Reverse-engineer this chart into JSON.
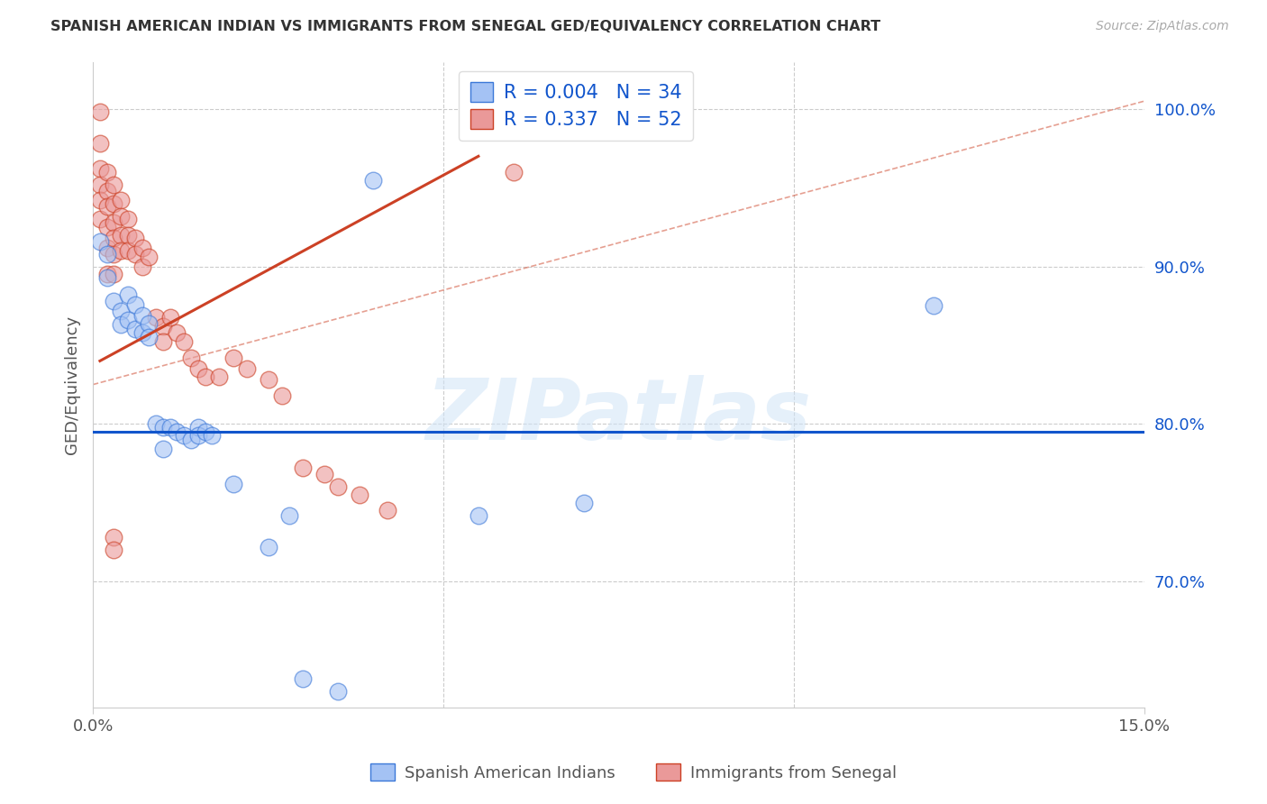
{
  "title": "SPANISH AMERICAN INDIAN VS IMMIGRANTS FROM SENEGAL GED/EQUIVALENCY CORRELATION CHART",
  "source": "Source: ZipAtlas.com",
  "ylabel": "GED/Equivalency",
  "ytick_labels": [
    "70.0%",
    "80.0%",
    "90.0%",
    "100.0%"
  ],
  "ytick_values": [
    0.7,
    0.8,
    0.9,
    1.0
  ],
  "xlim": [
    0.0,
    0.15
  ],
  "ylim": [
    0.62,
    1.03
  ],
  "legend_r1": "R = 0.004",
  "legend_n1": "N = 34",
  "legend_r2": "R = 0.337",
  "legend_n2": "N = 52",
  "blue_fill": "#a4c2f4",
  "blue_edge": "#3c78d8",
  "pink_fill": "#ea9999",
  "pink_edge": "#cc4125",
  "blue_line_color": "#1155cc",
  "pink_line_color": "#cc4125",
  "pink_dash_color": "#cc4125",
  "watermark_text": "ZIPatlas",
  "blue_regression": [
    0.0,
    0.795,
    0.15,
    0.795
  ],
  "pink_regression_solid": [
    0.001,
    0.84,
    0.055,
    0.97
  ],
  "pink_regression_dash": [
    0.0,
    0.825,
    0.15,
    1.005
  ],
  "blue_dots": [
    [
      0.001,
      0.916
    ],
    [
      0.002,
      0.908
    ],
    [
      0.002,
      0.893
    ],
    [
      0.003,
      0.878
    ],
    [
      0.004,
      0.872
    ],
    [
      0.004,
      0.863
    ],
    [
      0.005,
      0.882
    ],
    [
      0.005,
      0.866
    ],
    [
      0.006,
      0.876
    ],
    [
      0.006,
      0.86
    ],
    [
      0.007,
      0.869
    ],
    [
      0.007,
      0.858
    ],
    [
      0.008,
      0.864
    ],
    [
      0.008,
      0.855
    ],
    [
      0.009,
      0.8
    ],
    [
      0.01,
      0.798
    ],
    [
      0.01,
      0.784
    ],
    [
      0.011,
      0.798
    ],
    [
      0.012,
      0.795
    ],
    [
      0.013,
      0.793
    ],
    [
      0.014,
      0.79
    ],
    [
      0.015,
      0.798
    ],
    [
      0.015,
      0.793
    ],
    [
      0.016,
      0.795
    ],
    [
      0.017,
      0.793
    ],
    [
      0.02,
      0.762
    ],
    [
      0.025,
      0.722
    ],
    [
      0.028,
      0.742
    ],
    [
      0.03,
      0.638
    ],
    [
      0.035,
      0.63
    ],
    [
      0.055,
      0.742
    ],
    [
      0.04,
      0.955
    ],
    [
      0.12,
      0.875
    ],
    [
      0.07,
      0.75
    ]
  ],
  "pink_dots": [
    [
      0.001,
      0.998
    ],
    [
      0.001,
      0.978
    ],
    [
      0.001,
      0.962
    ],
    [
      0.001,
      0.952
    ],
    [
      0.001,
      0.942
    ],
    [
      0.001,
      0.93
    ],
    [
      0.002,
      0.96
    ],
    [
      0.002,
      0.948
    ],
    [
      0.002,
      0.938
    ],
    [
      0.002,
      0.925
    ],
    [
      0.002,
      0.912
    ],
    [
      0.002,
      0.895
    ],
    [
      0.003,
      0.952
    ],
    [
      0.003,
      0.94
    ],
    [
      0.003,
      0.928
    ],
    [
      0.003,
      0.918
    ],
    [
      0.003,
      0.908
    ],
    [
      0.003,
      0.895
    ],
    [
      0.004,
      0.942
    ],
    [
      0.004,
      0.932
    ],
    [
      0.004,
      0.92
    ],
    [
      0.004,
      0.91
    ],
    [
      0.005,
      0.93
    ],
    [
      0.005,
      0.92
    ],
    [
      0.005,
      0.91
    ],
    [
      0.006,
      0.918
    ],
    [
      0.006,
      0.908
    ],
    [
      0.007,
      0.912
    ],
    [
      0.007,
      0.9
    ],
    [
      0.008,
      0.906
    ],
    [
      0.009,
      0.868
    ],
    [
      0.01,
      0.862
    ],
    [
      0.01,
      0.852
    ],
    [
      0.011,
      0.868
    ],
    [
      0.012,
      0.858
    ],
    [
      0.013,
      0.852
    ],
    [
      0.014,
      0.842
    ],
    [
      0.015,
      0.835
    ],
    [
      0.016,
      0.83
    ],
    [
      0.018,
      0.83
    ],
    [
      0.02,
      0.842
    ],
    [
      0.022,
      0.835
    ],
    [
      0.025,
      0.828
    ],
    [
      0.027,
      0.818
    ],
    [
      0.03,
      0.772
    ],
    [
      0.033,
      0.768
    ],
    [
      0.035,
      0.76
    ],
    [
      0.038,
      0.755
    ],
    [
      0.042,
      0.745
    ],
    [
      0.06,
      0.96
    ],
    [
      0.003,
      0.728
    ],
    [
      0.003,
      0.72
    ]
  ]
}
